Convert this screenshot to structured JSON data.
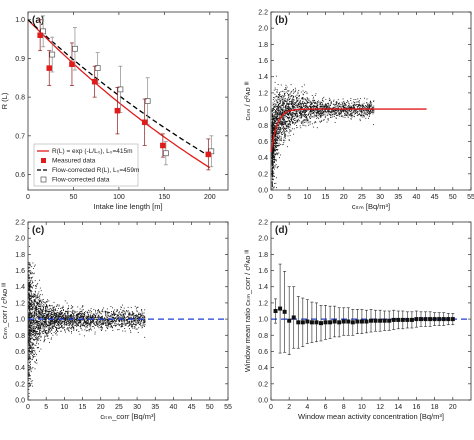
{
  "chart_data": [
    {
      "panel_label": "(a)",
      "type": "scatter",
      "xlabel": "Intake line length [m]",
      "ylabel": "R (L)",
      "xlim": [
        0,
        220
      ],
      "ylim": [
        0.56,
        1.02
      ],
      "xticks": [
        0,
        50,
        100,
        150,
        200
      ],
      "yticks": [
        0.6,
        0.7,
        0.8,
        0.9,
        1.0
      ],
      "tick_labels_x": [
        "0",
        "50",
        "100",
        "150",
        "200"
      ],
      "tick_labels_y": [
        "0.6",
        "0.7",
        "0.8",
        "0.9",
        "1.0"
      ],
      "legend": [
        {
          "label": "R(L) = exp (-L/L₀), L₀=415m",
          "style": "red-line"
        },
        {
          "label": "Measured data",
          "style": "red-square"
        },
        {
          "label": "Flow-corrected R(L), L₀=459m",
          "style": "black-dashed"
        },
        {
          "label": "Flow-corrected data",
          "style": "open-square"
        }
      ],
      "measured": [
        {
          "x": 15,
          "y": 0.96,
          "err": 0.04
        },
        {
          "x": 25,
          "y": 0.875,
          "err": 0.045
        },
        {
          "x": 50,
          "y": 0.885,
          "err": 0.055
        },
        {
          "x": 75,
          "y": 0.84,
          "err": 0.04
        },
        {
          "x": 100,
          "y": 0.765,
          "err": 0.06
        },
        {
          "x": 130,
          "y": 0.735,
          "err": 0.06
        },
        {
          "x": 150,
          "y": 0.675,
          "err": 0.03
        },
        {
          "x": 200,
          "y": 0.652,
          "err": 0.04
        }
      ],
      "flow_corrected": [
        {
          "x": 15,
          "y": 0.97,
          "err": 0.04
        },
        {
          "x": 25,
          "y": 0.91,
          "err": 0.045
        },
        {
          "x": 50,
          "y": 0.925,
          "err": 0.055
        },
        {
          "x": 75,
          "y": 0.875,
          "err": 0.04
        },
        {
          "x": 100,
          "y": 0.82,
          "err": 0.06
        },
        {
          "x": 130,
          "y": 0.79,
          "err": 0.06
        },
        {
          "x": 150,
          "y": 0.655,
          "err": 0.03
        },
        {
          "x": 200,
          "y": 0.66,
          "err": 0.04
        }
      ],
      "fit_L0": 415,
      "flow_corrected_L0": 459,
      "colors": {
        "measured": "#e01b1b",
        "flow_corrected": "#444444",
        "fit": "#e01b1b",
        "corrected_fit": "#000000"
      }
    },
    {
      "panel_label": "(b)",
      "type": "scatter",
      "xlabel": "cₗₜₘ [Bq/m³]",
      "ylabel": "cₗₜₘ / cᴿᴀᴅ ᴵᴵᴵ",
      "xlim": [
        0,
        55
      ],
      "ylim": [
        0,
        2.2
      ],
      "xticks": [
        0,
        5,
        10,
        15,
        20,
        25,
        30,
        35,
        40,
        45,
        50,
        55
      ],
      "yticks": [
        0,
        0.2,
        0.4,
        0.6,
        0.8,
        1.0,
        1.2,
        1.4,
        1.6,
        1.8,
        2.0,
        2.2
      ],
      "tick_labels_x": [
        "0",
        "5",
        "10",
        "15",
        "20",
        "25",
        "30",
        "35",
        "40",
        "45",
        "50",
        "55"
      ],
      "tick_labels_y": [
        "0.0",
        "0.2",
        "0.4",
        "0.6",
        "0.8",
        "1.0",
        "1.2",
        "1.4",
        "1.6",
        "1.8",
        "2.0",
        "2.2"
      ],
      "reference_curve": {
        "plateau": 1.0,
        "x_end": 43,
        "color": "#e01b1b"
      }
    },
    {
      "panel_label": "(c)",
      "type": "scatter",
      "xlabel": "cₗₜₘ_corr [Bq/m³]",
      "ylabel": "cₗₜₘ_corr / cᴿᴀᴅ ᴵᴵᴵ",
      "xlim": [
        0,
        55
      ],
      "ylim": [
        0,
        2.2
      ],
      "xticks": [
        0,
        5,
        10,
        15,
        20,
        25,
        30,
        35,
        40,
        45,
        50,
        55
      ],
      "yticks": [
        0,
        0.2,
        0.4,
        0.6,
        0.8,
        1.0,
        1.2,
        1.4,
        1.6,
        1.8,
        2.0,
        2.2
      ],
      "tick_labels_x": [
        "0",
        "5",
        "10",
        "15",
        "20",
        "25",
        "30",
        "35",
        "40",
        "45",
        "50",
        "55"
      ],
      "tick_labels_y": [
        "0.0",
        "0.2",
        "0.4",
        "0.6",
        "0.8",
        "1.0",
        "1.2",
        "1.4",
        "1.6",
        "1.8",
        "2.0",
        "2.2"
      ],
      "reference_line": {
        "y": 1.0,
        "color": "#1f3fd6",
        "style": "dashed"
      }
    },
    {
      "panel_label": "(d)",
      "type": "scatter",
      "xlabel": "Window mean activity concentration [Bq/m³]",
      "ylabel": "Window mean ratio cₗₜₘ_corr / cᴿᴀᴅ ᴵᴵᴵ",
      "xlim": [
        0,
        22
      ],
      "ylim": [
        0,
        2.2
      ],
      "xticks": [
        0,
        2,
        4,
        6,
        8,
        10,
        12,
        14,
        16,
        18,
        20
      ],
      "yticks": [
        0,
        0.2,
        0.4,
        0.6,
        0.8,
        1.0,
        1.2,
        1.4,
        1.6,
        1.8,
        2.0,
        2.2
      ],
      "tick_labels_x": [
        "0",
        "2",
        "4",
        "6",
        "8",
        "10",
        "12",
        "14",
        "16",
        "18",
        "20"
      ],
      "tick_labels_y": [
        "0.0",
        "0.2",
        "0.4",
        "0.6",
        "0.8",
        "1.0",
        "1.2",
        "1.4",
        "1.6",
        "1.8",
        "2.0",
        "2.2"
      ],
      "reference_line": {
        "y": 1.0,
        "color": "#1f3fd6",
        "style": "dashed"
      },
      "x": [
        0.5,
        1.0,
        1.5,
        2.0,
        2.5,
        3.0,
        3.5,
        4.0,
        4.5,
        5.0,
        5.5,
        6.0,
        6.5,
        7.0,
        7.5,
        8.0,
        8.5,
        9.0,
        9.5,
        10.0,
        10.5,
        11.0,
        11.5,
        12.0,
        12.5,
        13.0,
        13.5,
        14.0,
        14.5,
        15.0,
        15.5,
        16.0,
        16.5,
        17.0,
        17.5,
        18.0,
        18.5,
        19.0,
        19.5,
        20.0
      ],
      "y": [
        1.1,
        1.13,
        1.09,
        0.98,
        1.02,
        0.96,
        0.96,
        0.97,
        0.96,
        0.96,
        0.95,
        0.96,
        0.96,
        0.97,
        0.96,
        0.97,
        0.97,
        0.96,
        0.97,
        0.97,
        0.97,
        0.98,
        0.98,
        0.98,
        0.98,
        0.98,
        0.99,
        0.99,
        0.99,
        0.99,
        0.99,
        1.0,
        1.0,
        1.0,
        1.0,
        1.0,
        1.0,
        1.0,
        1.0,
        1.0
      ],
      "err": [
        0.15,
        0.55,
        0.5,
        0.42,
        0.38,
        0.32,
        0.3,
        0.27,
        0.25,
        0.24,
        0.22,
        0.21,
        0.2,
        0.19,
        0.18,
        0.17,
        0.17,
        0.16,
        0.15,
        0.15,
        0.14,
        0.14,
        0.13,
        0.13,
        0.12,
        0.12,
        0.12,
        0.11,
        0.11,
        0.1,
        0.1,
        0.1,
        0.09,
        0.09,
        0.09,
        0.08,
        0.08,
        0.08,
        0.07,
        0.07
      ]
    }
  ]
}
